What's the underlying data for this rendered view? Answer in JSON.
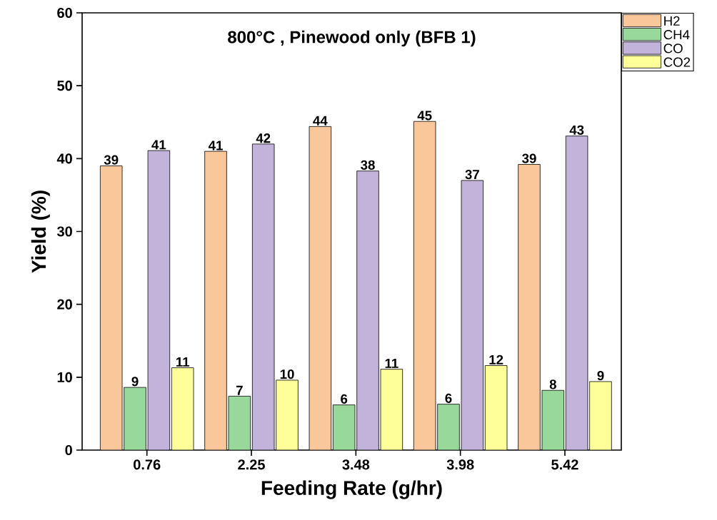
{
  "chart_data": {
    "type": "bar",
    "title": "800°C , Pinewood only (BFB 1)",
    "xlabel": "Feeding Rate (g/hr)",
    "ylabel": "Yield (%)",
    "categories": [
      "0.76",
      "2.25",
      "3.48",
      "3.98",
      "5.42"
    ],
    "series": [
      {
        "name": "H2",
        "color": "#fac79b",
        "values": [
          39.0,
          41.0,
          44.4,
          45.1,
          39.2
        ],
        "value_labels": [
          "39",
          "41",
          "44",
          "45",
          "39"
        ]
      },
      {
        "name": "CH4",
        "color": "#99d89b",
        "values": [
          8.6,
          7.4,
          6.2,
          6.3,
          8.2
        ],
        "value_labels": [
          "9",
          "7",
          "6",
          "6",
          "8"
        ]
      },
      {
        "name": "CO",
        "color": "#c1b3d9",
        "values": [
          41.1,
          42.0,
          38.3,
          37.0,
          43.1
        ],
        "value_labels": [
          "41",
          "42",
          "38",
          "37",
          "43"
        ]
      },
      {
        "name": "CO2",
        "color": "#ffff9a",
        "values": [
          11.3,
          9.6,
          11.1,
          11.6,
          9.4
        ],
        "value_labels": [
          "11",
          "10",
          "11",
          "12",
          "9"
        ]
      }
    ],
    "ylim": [
      0,
      60
    ],
    "yticks": [
      0,
      10,
      20,
      30,
      40,
      50,
      60
    ],
    "legend": "top right"
  }
}
